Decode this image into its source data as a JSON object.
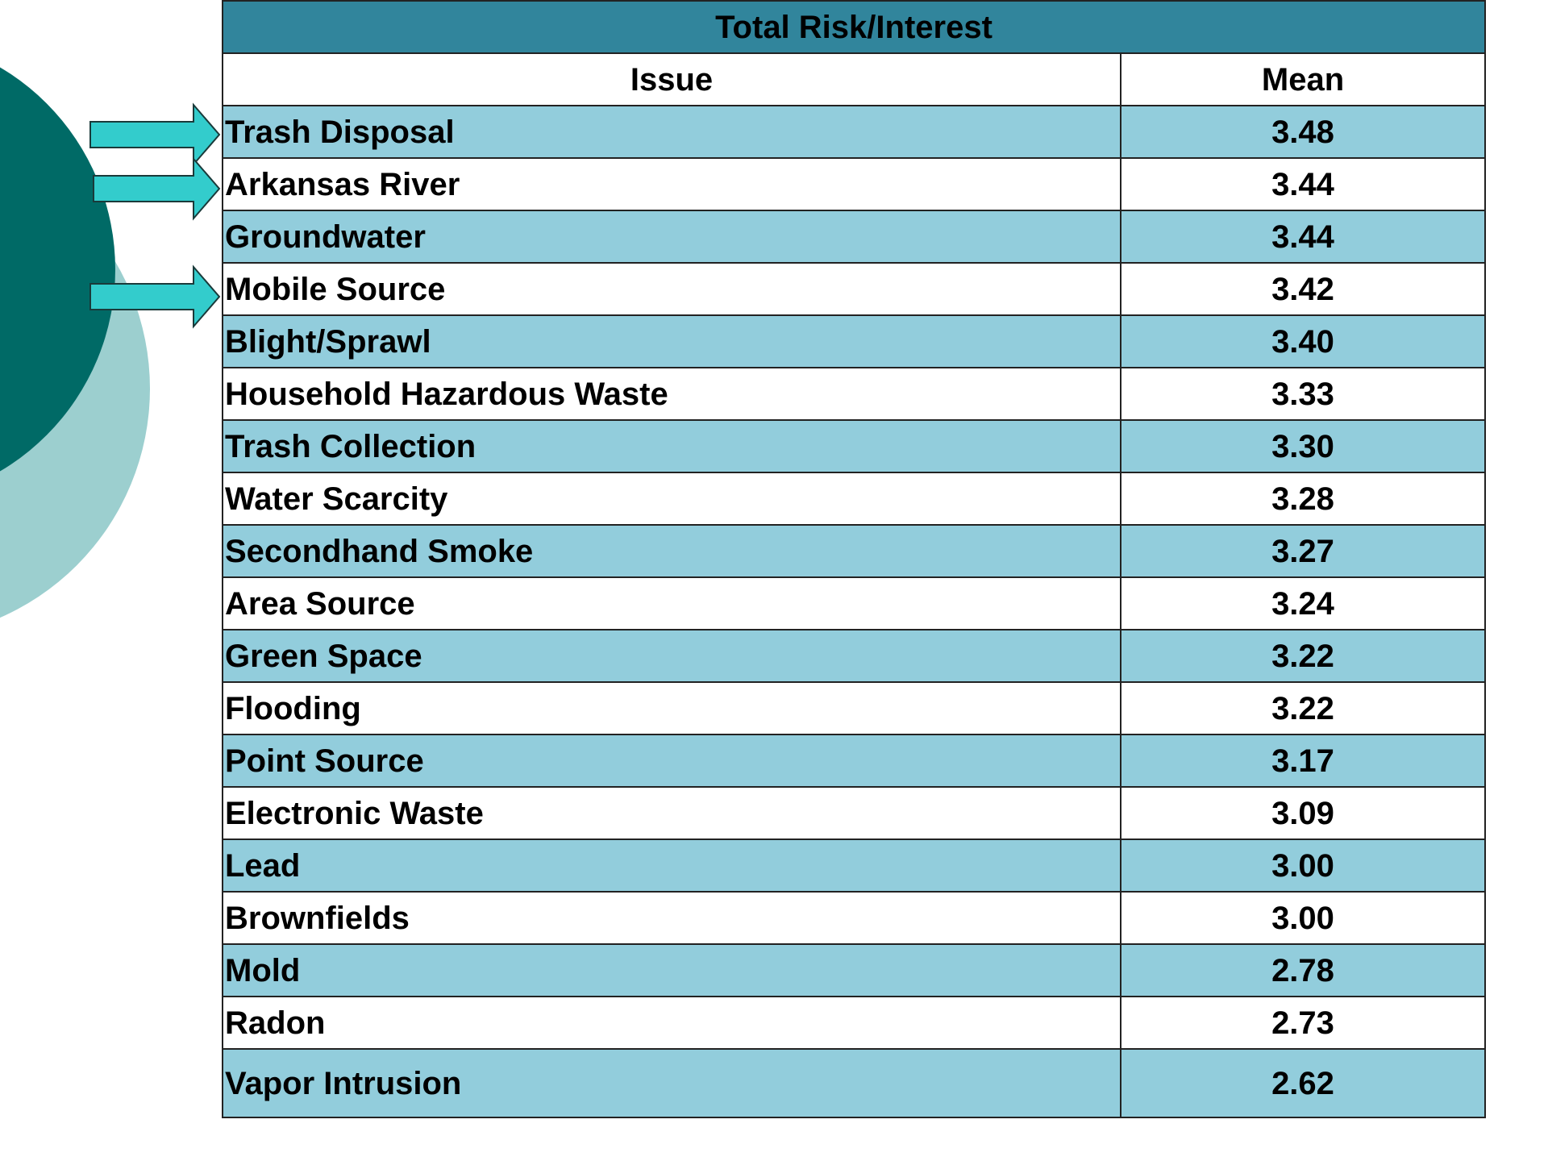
{
  "table": {
    "title": "Total Risk/Interest",
    "headers": [
      "Issue",
      "Mean"
    ],
    "rows": [
      [
        "Trash Disposal",
        "3.48"
      ],
      [
        "Arkansas River",
        "3.44"
      ],
      [
        "Groundwater",
        "3.44"
      ],
      [
        "Mobile Source",
        "3.42"
      ],
      [
        "Blight/Sprawl",
        "3.40"
      ],
      [
        "Household Hazardous Waste",
        "3.33"
      ],
      [
        "Trash Collection",
        "3.30"
      ],
      [
        "Water Scarcity",
        "3.28"
      ],
      [
        "Secondhand Smoke",
        "3.27"
      ],
      [
        "Area Source",
        "3.24"
      ],
      [
        "Green Space",
        "3.22"
      ],
      [
        "Flooding",
        "3.22"
      ],
      [
        "Point Source",
        "3.17"
      ],
      [
        "Electronic Waste",
        "3.09"
      ],
      [
        "Lead",
        "3.00"
      ],
      [
        "Brownfields",
        "3.00"
      ],
      [
        "Mold",
        "2.78"
      ],
      [
        "Radon",
        "2.73"
      ],
      [
        "Vapor Intrusion",
        "2.62"
      ]
    ]
  }
}
